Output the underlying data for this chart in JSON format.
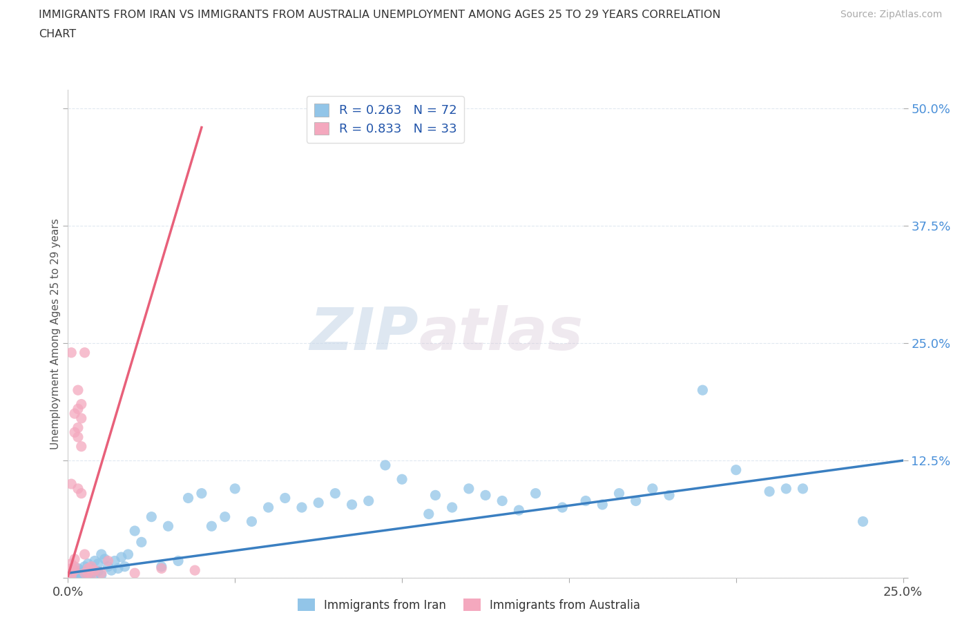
{
  "title_line1": "IMMIGRANTS FROM IRAN VS IMMIGRANTS FROM AUSTRALIA UNEMPLOYMENT AMONG AGES 25 TO 29 YEARS CORRELATION",
  "title_line2": "CHART",
  "source_text": "Source: ZipAtlas.com",
  "ylabel": "Unemployment Among Ages 25 to 29 years",
  "xlim": [
    0.0,
    0.25
  ],
  "ylim": [
    -0.02,
    0.52
  ],
  "plot_ylim": [
    0.0,
    0.52
  ],
  "xticks": [
    0.0,
    0.05,
    0.1,
    0.15,
    0.2,
    0.25
  ],
  "xticklabels": [
    "0.0%",
    "",
    "",
    "",
    "",
    "25.0%"
  ],
  "yticks": [
    0.0,
    0.125,
    0.25,
    0.375,
    0.5
  ],
  "yticklabels": [
    "",
    "12.5%",
    "25.0%",
    "37.5%",
    "50.0%"
  ],
  "watermark_ZIP": "ZIP",
  "watermark_atlas": "atlas",
  "legend_iran_label": "Immigrants from Iran",
  "legend_aus_label": "Immigrants from Australia",
  "iran_R": "0.263",
  "iran_N": "72",
  "aus_R": "0.833",
  "aus_N": "33",
  "iran_color": "#92C5E8",
  "aus_color": "#F4A8BE",
  "iran_line_color": "#3A7FC1",
  "aus_line_color": "#E8607A",
  "background_color": "#FFFFFF",
  "grid_color": "#E0E8F0",
  "iran_x": [
    0.001,
    0.001,
    0.002,
    0.002,
    0.003,
    0.003,
    0.003,
    0.004,
    0.004,
    0.004,
    0.005,
    0.005,
    0.006,
    0.006,
    0.007,
    0.007,
    0.008,
    0.008,
    0.009,
    0.009,
    0.01,
    0.01,
    0.011,
    0.012,
    0.013,
    0.014,
    0.015,
    0.016,
    0.017,
    0.018,
    0.02,
    0.022,
    0.025,
    0.028,
    0.03,
    0.033,
    0.036,
    0.04,
    0.043,
    0.047,
    0.05,
    0.055,
    0.06,
    0.065,
    0.07,
    0.075,
    0.08,
    0.085,
    0.09,
    0.095,
    0.1,
    0.108,
    0.11,
    0.115,
    0.12,
    0.125,
    0.13,
    0.135,
    0.14,
    0.148,
    0.155,
    0.16,
    0.165,
    0.17,
    0.175,
    0.18,
    0.19,
    0.2,
    0.21,
    0.215,
    0.22,
    0.238
  ],
  "iran_y": [
    0.005,
    0.002,
    0.008,
    0.003,
    0.01,
    0.005,
    0.002,
    0.008,
    0.004,
    0.001,
    0.012,
    0.006,
    0.015,
    0.003,
    0.01,
    0.005,
    0.018,
    0.004,
    0.015,
    0.007,
    0.025,
    0.003,
    0.02,
    0.012,
    0.008,
    0.018,
    0.01,
    0.022,
    0.012,
    0.025,
    0.05,
    0.038,
    0.065,
    0.012,
    0.055,
    0.018,
    0.085,
    0.09,
    0.055,
    0.065,
    0.095,
    0.06,
    0.075,
    0.085,
    0.075,
    0.08,
    0.09,
    0.078,
    0.082,
    0.12,
    0.105,
    0.068,
    0.088,
    0.075,
    0.095,
    0.088,
    0.082,
    0.072,
    0.09,
    0.075,
    0.082,
    0.078,
    0.09,
    0.082,
    0.095,
    0.088,
    0.2,
    0.115,
    0.092,
    0.095,
    0.095,
    0.06
  ],
  "aus_x": [
    0.001,
    0.001,
    0.001,
    0.001,
    0.001,
    0.001,
    0.002,
    0.002,
    0.002,
    0.002,
    0.002,
    0.003,
    0.003,
    0.003,
    0.003,
    0.003,
    0.004,
    0.004,
    0.004,
    0.004,
    0.005,
    0.005,
    0.005,
    0.006,
    0.006,
    0.007,
    0.007,
    0.008,
    0.01,
    0.012,
    0.02,
    0.028,
    0.038
  ],
  "aus_y": [
    0.005,
    0.01,
    0.015,
    0.002,
    0.24,
    0.1,
    0.008,
    0.175,
    0.155,
    0.012,
    0.02,
    0.15,
    0.2,
    0.18,
    0.095,
    0.16,
    0.185,
    0.17,
    0.09,
    0.14,
    0.025,
    0.005,
    0.24,
    0.01,
    0.005,
    0.012,
    0.003,
    0.008,
    0.005,
    0.018,
    0.005,
    0.01,
    0.008
  ],
  "iran_trend_x": [
    0.0,
    0.25
  ],
  "iran_trend_y": [
    0.005,
    0.125
  ],
  "aus_trend_x": [
    0.0,
    0.04
  ],
  "aus_trend_y": [
    0.002,
    0.48
  ]
}
